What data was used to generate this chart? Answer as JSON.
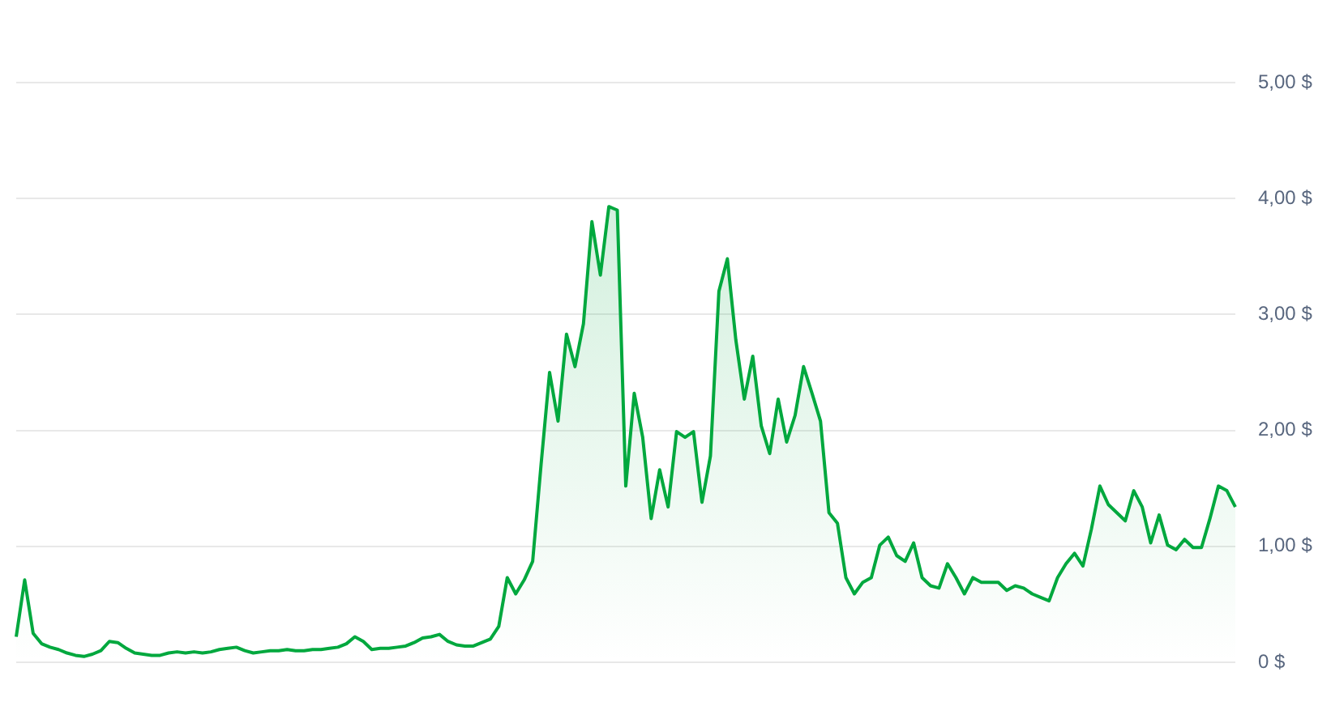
{
  "chart_data": {
    "type": "area",
    "categories": [
      null,
      null,
      null,
      null,
      null,
      null,
      null,
      null,
      null,
      null,
      null,
      null,
      null,
      null,
      null,
      null,
      null,
      null,
      null,
      null,
      null,
      null,
      null,
      null,
      null,
      null,
      null,
      null,
      null,
      null,
      null,
      null,
      null,
      null,
      null,
      null,
      null,
      null,
      null,
      null,
      null,
      null,
      null,
      null,
      null,
      null,
      null,
      null,
      null,
      null,
      null,
      null,
      null,
      null,
      null,
      null,
      null,
      null,
      null,
      null,
      null,
      null,
      null,
      null,
      null,
      null,
      null,
      null,
      null,
      null,
      null,
      null,
      null,
      null,
      null,
      null,
      null,
      null,
      null,
      null,
      null,
      null,
      null,
      null,
      null,
      null,
      null,
      null,
      null,
      null,
      null,
      null,
      null,
      null,
      null,
      null,
      null,
      null,
      null,
      null,
      null,
      null,
      null,
      null,
      null,
      null,
      null,
      null,
      null,
      null,
      null,
      null,
      null,
      null,
      null,
      null,
      null,
      null,
      null,
      null,
      null,
      null,
      null,
      null,
      null,
      null,
      null,
      null,
      null,
      null,
      null,
      null,
      null,
      null,
      null,
      null,
      null,
      null,
      null,
      null,
      null,
      null,
      null,
      null,
      null
    ],
    "series": [
      {
        "color": "#00a83e",
        "values": [
          0.22,
          0.71,
          0.25,
          0.16,
          0.13,
          0.11,
          0.08,
          0.06,
          0.05,
          0.07,
          0.1,
          0.18,
          0.17,
          0.12,
          0.08,
          0.07,
          0.06,
          0.06,
          0.08,
          0.09,
          0.08,
          0.09,
          0.08,
          0.09,
          0.11,
          0.12,
          0.13,
          0.1,
          0.08,
          0.09,
          0.1,
          0.1,
          0.11,
          0.1,
          0.1,
          0.11,
          0.11,
          0.12,
          0.13,
          0.16,
          0.22,
          0.18,
          0.11,
          0.12,
          0.12,
          0.13,
          0.14,
          0.17,
          0.21,
          0.22,
          0.24,
          0.18,
          0.15,
          0.14,
          0.14,
          0.17,
          0.2,
          0.31,
          0.73,
          0.59,
          0.71,
          0.87,
          1.71,
          2.5,
          2.08,
          2.83,
          2.55,
          2.92,
          3.8,
          3.34,
          3.93,
          3.9,
          1.52,
          2.32,
          1.94,
          1.24,
          1.66,
          1.34,
          1.99,
          1.94,
          1.99,
          1.38,
          1.78,
          3.2,
          3.48,
          2.78,
          2.27,
          2.64,
          2.04,
          1.8,
          2.27,
          1.9,
          2.13,
          2.55,
          2.32,
          2.08,
          1.29,
          1.2,
          0.73,
          0.59,
          0.69,
          0.73,
          1.01,
          1.08,
          0.92,
          0.87,
          1.03,
          0.73,
          0.66,
          0.64,
          0.85,
          0.73,
          0.59,
          0.73,
          0.69,
          0.69,
          0.69,
          0.62,
          0.66,
          0.64,
          0.59,
          0.56,
          0.53,
          0.73,
          0.85,
          0.94,
          0.83,
          1.15,
          1.52,
          1.36,
          1.29,
          1.22,
          1.48,
          1.34,
          1.03,
          1.27,
          1.01,
          0.97,
          1.06,
          0.99,
          0.99,
          1.24,
          1.52,
          1.48,
          1.34
        ]
      }
    ],
    "ylim": [
      0,
      5
    ],
    "yticks": [
      {
        "value": 0,
        "label": "0 $"
      },
      {
        "value": 1,
        "label": "1,00 $"
      },
      {
        "value": 2,
        "label": "2,00 $"
      },
      {
        "value": 3,
        "label": "3,00 $"
      },
      {
        "value": 4,
        "label": "4,00 $"
      },
      {
        "value": 5,
        "label": "5,00 $"
      }
    ],
    "grid": "y",
    "marker": "none"
  }
}
